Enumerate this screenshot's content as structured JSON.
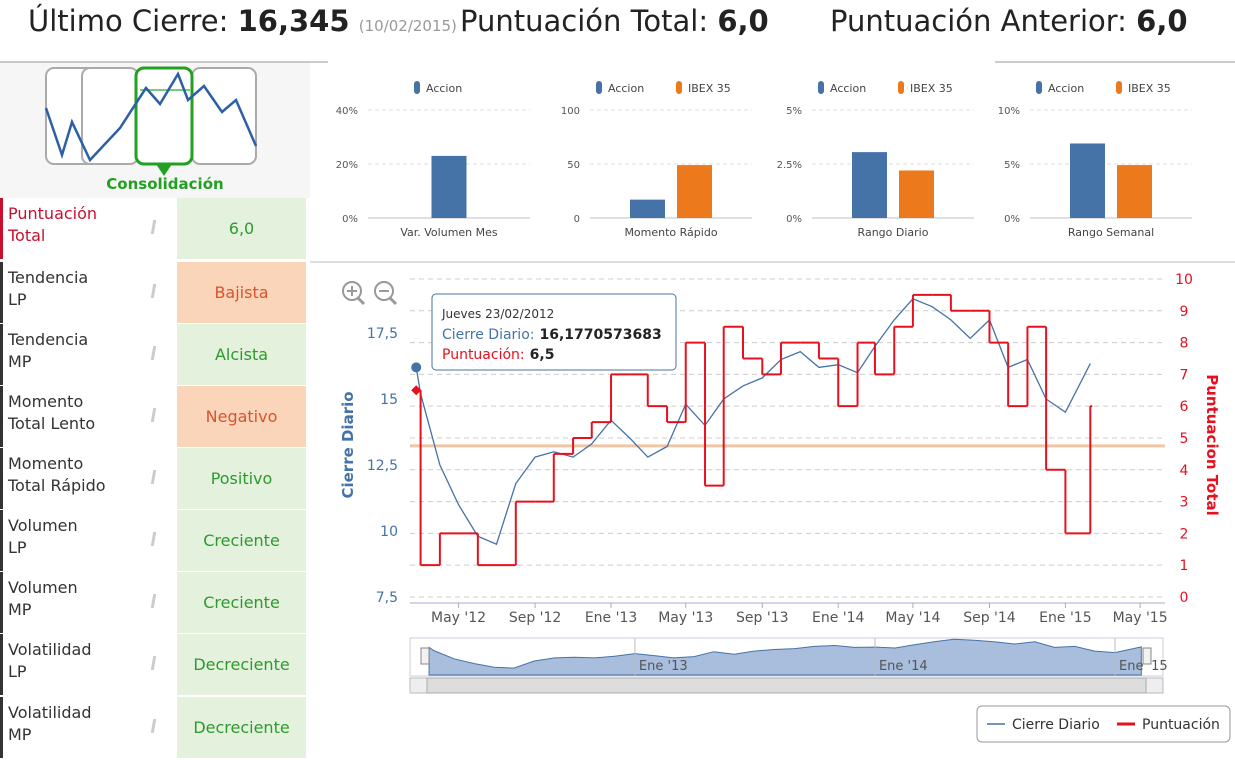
{
  "header": {
    "items": [
      {
        "label": "Último Cierre:",
        "value": "16,345",
        "note": "(10/02/2015)"
      },
      {
        "label": "Puntuación Total:",
        "value": "6,0"
      },
      {
        "label": "Puntuación Anterior:",
        "value": "6,0"
      }
    ]
  },
  "pattern": {
    "label": "Consolidación"
  },
  "table": {
    "rows": [
      {
        "label": [
          "Puntuación",
          "Total"
        ],
        "value": "6,0",
        "color": "#e3f1dd",
        "text_color": "#2e9a2e",
        "label_color": "#c8102e"
      },
      {
        "label": [
          "Tendencia",
          "LP"
        ],
        "value": "Bajista",
        "color": "#fbd5b9",
        "text_color": "#d9532c"
      },
      {
        "label": [
          "Tendencia",
          "MP"
        ],
        "value": "Alcista",
        "color": "#e3f1dd",
        "text_color": "#2e9a2e"
      },
      {
        "label": [
          "Momento",
          "Total Lento"
        ],
        "value": "Negativo",
        "color": "#fbd5b9",
        "text_color": "#d9532c"
      },
      {
        "label": [
          "Momento",
          "Total Rápido"
        ],
        "value": "Positivo",
        "color": "#e3f1dd",
        "text_color": "#2e9a2e"
      },
      {
        "label": [
          "Volumen",
          "LP"
        ],
        "value": "Creciente",
        "color": "#e3f1dd",
        "text_color": "#2e9a2e"
      },
      {
        "label": [
          "Volumen",
          "MP"
        ],
        "value": "Creciente",
        "color": "#e3f1dd",
        "text_color": "#2e9a2e"
      },
      {
        "label": [
          "Volatilidad",
          "LP"
        ],
        "value": "Decreciente",
        "color": "#e3f1dd",
        "text_color": "#2e9a2e"
      },
      {
        "label": [
          "Volatilidad",
          "MP"
        ],
        "value": "Decreciente",
        "color": "#e3f1dd",
        "text_color": "#2e9a2e"
      }
    ]
  },
  "chart_data": [
    {
      "type": "bar",
      "categories": [
        "Var. Volumen Mes"
      ],
      "series": [
        {
          "name": "Accion",
          "color": "#4572a7",
          "values": [
            23
          ]
        }
      ],
      "ylim": [
        0,
        40
      ],
      "yticks": [
        {
          "value": 0,
          "label": "0%"
        },
        {
          "value": 20,
          "label": "20%"
        },
        {
          "value": 40,
          "label": "40%"
        }
      ],
      "grid": true
    },
    {
      "type": "bar",
      "categories": [
        "Momento Rápido"
      ],
      "series": [
        {
          "name": "Accion",
          "color": "#4572a7",
          "values": [
            17
          ]
        },
        {
          "name": "IBEX 35",
          "color": "#ec7a1c",
          "values": [
            49
          ]
        }
      ],
      "ylim": [
        0,
        100
      ],
      "yticks": [
        0,
        50,
        100
      ],
      "grid": true
    },
    {
      "type": "bar",
      "categories": [
        "Rango Diario"
      ],
      "series": [
        {
          "name": "Accion",
          "color": "#4572a7",
          "values": [
            3.05
          ]
        },
        {
          "name": "IBEX 35",
          "color": "#ec7a1c",
          "values": [
            2.2
          ]
        }
      ],
      "ylim": [
        0,
        5
      ],
      "yticks": [
        {
          "value": 0,
          "label": "0%"
        },
        {
          "value": 2.5,
          "label": "2.5%"
        },
        {
          "value": 5,
          "label": "5%"
        }
      ],
      "grid": true
    },
    {
      "type": "bar",
      "categories": [
        "Rango Semanal"
      ],
      "series": [
        {
          "name": "Accion",
          "color": "#4572a7",
          "values": [
            6.9
          ]
        },
        {
          "name": "IBEX 35",
          "color": "#ec7a1c",
          "values": [
            4.9
          ]
        }
      ],
      "ylim": [
        0,
        10
      ],
      "yticks": [
        {
          "value": 0,
          "label": "0%"
        },
        {
          "value": 5,
          "label": "5%"
        },
        {
          "value": 10,
          "label": "10%"
        }
      ],
      "grid": true
    },
    {
      "type": "line",
      "y_label": "Cierre Diario",
      "y2_label": "Puntuacion Total",
      "x": [
        "2012-02-23",
        "2012-03-01",
        "2012-04-01",
        "2012-05-01",
        "2012-06-01",
        "2012-07-01",
        "2012-08-01",
        "2012-09-01",
        "2012-10-01",
        "2012-11-01",
        "2012-12-01",
        "2013-01-01",
        "2013-02-01",
        "2013-03-01",
        "2013-04-01",
        "2013-05-01",
        "2013-06-01",
        "2013-07-01",
        "2013-08-01",
        "2013-09-01",
        "2013-10-01",
        "2013-11-01",
        "2013-12-01",
        "2014-01-01",
        "2014-02-01",
        "2014-03-01",
        "2014-04-01",
        "2014-05-01",
        "2014-06-01",
        "2014-07-01",
        "2014-08-01",
        "2014-09-01",
        "2014-10-01",
        "2014-11-01",
        "2014-12-01",
        "2015-01-01",
        "2015-02-10"
      ],
      "series": [
        {
          "name": "Cierre Diario",
          "color": "#4572a7",
          "values": [
            16.2,
            15.2,
            12.5,
            11.0,
            9.8,
            9.5,
            11.8,
            12.8,
            13.0,
            12.8,
            13.3,
            14.2,
            13.5,
            12.8,
            13.2,
            14.8,
            14.0,
            15.0,
            15.5,
            15.8,
            16.5,
            16.8,
            16.2,
            16.3,
            16.0,
            17.0,
            18.0,
            18.8,
            18.5,
            18.0,
            17.3,
            18.0,
            16.2,
            16.5,
            15.0,
            14.5,
            16.345
          ]
        },
        {
          "name": "Puntuación",
          "color": "#e8101e",
          "axis": "y2",
          "step": true,
          "values": [
            6.5,
            1,
            2,
            2,
            1,
            1,
            3,
            3,
            4.5,
            5,
            5.5,
            7,
            7,
            6,
            5.5,
            8,
            3.5,
            8.5,
            7.5,
            7,
            8,
            8,
            7.5,
            6,
            8,
            7,
            8.5,
            9.5,
            9.5,
            9,
            9,
            8,
            6,
            8.5,
            4,
            2,
            6.0
          ]
        }
      ],
      "xlim": [
        "2012-02-13",
        "2015-06-10"
      ],
      "xticks": [
        {
          "value": "2012-05-01",
          "label": "May '12"
        },
        {
          "value": "2012-09-01",
          "label": "Sep '12"
        },
        {
          "value": "2013-01-01",
          "label": "Ene '13"
        },
        {
          "value": "2013-05-01",
          "label": "May '13"
        },
        {
          "value": "2013-09-01",
          "label": "Sep '13"
        },
        {
          "value": "2014-01-01",
          "label": "Ene '14"
        },
        {
          "value": "2014-05-01",
          "label": "May '14"
        },
        {
          "value": "2014-09-01",
          "label": "Sep '14"
        },
        {
          "value": "2015-01-01",
          "label": "Ene '15"
        },
        {
          "value": "2015-05-01",
          "label": "May '15"
        }
      ],
      "ylim": [
        7.27,
        19.55
      ],
      "yticks": [
        {
          "value": 7.5,
          "label": "7,5"
        },
        10,
        {
          "value": 12.5,
          "label": "12,5"
        },
        15,
        {
          "value": 17.5,
          "label": "17,5"
        }
      ],
      "y2lim": [
        -0.19,
        10
      ],
      "y2ticks": [
        0,
        1,
        2,
        3,
        4,
        5,
        6,
        7,
        8,
        9,
        10
      ],
      "grid": true,
      "plot_line": {
        "axis": "y2",
        "value": 4.75,
        "color": "#f0c5a5"
      },
      "navigator_xlim": [
        "2012-01-25",
        "2015-03-15"
      ],
      "tooltip": {
        "date": "Jueves 23/02/2012",
        "items": [
          {
            "label": "Cierre Diario:",
            "value": "16,1770573683",
            "color": "#4572a7"
          },
          {
            "label": "Puntuación:",
            "value": "6,5",
            "color": "#e8101e"
          }
        ]
      },
      "legend": "bottom-right"
    }
  ]
}
